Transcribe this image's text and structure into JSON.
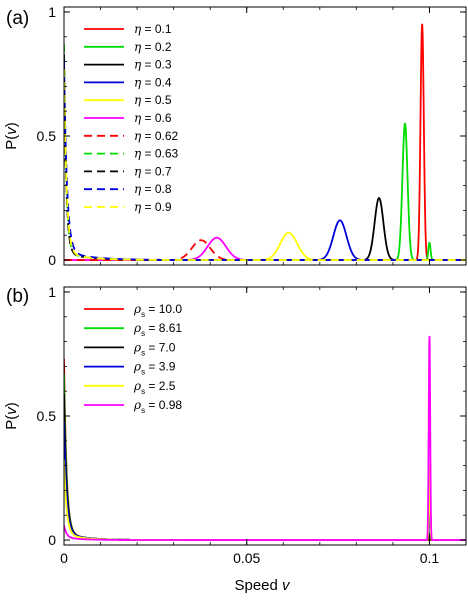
{
  "figure": {
    "x_label": "Speed v",
    "x_ticks": [
      {
        "value": 0,
        "label": "0"
      },
      {
        "value": 0.05,
        "label": "0.05"
      },
      {
        "value": 0.1,
        "label": "0.1"
      }
    ]
  },
  "chart_data": [
    {
      "type": "line",
      "panel_label": "(a)",
      "ylabel": "P(v)",
      "xlim": [
        0,
        0.11
      ],
      "ylim": [
        -0.02,
        1.02
      ],
      "x_ticks": [
        0,
        0.05,
        0.1
      ],
      "y_ticks": [
        {
          "value": 0,
          "label": "0"
        },
        {
          "value": 0.5,
          "label": "0.5"
        },
        {
          "value": 1,
          "label": "1"
        }
      ],
      "legend_position": "top-left",
      "legend_symbol": "η",
      "series": [
        {
          "name": "η = 0.1",
          "legend_value": "0.1",
          "color": "#ff0000",
          "dash": "solid",
          "curves": [
            {
              "kind": "peak",
              "center": 0.098,
              "width": 0.00045,
              "height": 0.95
            }
          ]
        },
        {
          "name": "η = 0.2",
          "legend_value": "0.2",
          "color": "#00dd00",
          "dash": "solid",
          "curves": [
            {
              "kind": "peak",
              "center": 0.0933,
              "width": 0.0007,
              "height": 0.55
            },
            {
              "kind": "peak",
              "center": 0.1,
              "width": 0.0003,
              "height": 0.07
            }
          ]
        },
        {
          "name": "η = 0.3",
          "legend_value": "0.3",
          "color": "#000000",
          "dash": "solid",
          "curves": [
            {
              "kind": "peak",
              "center": 0.0862,
              "width": 0.0012,
              "height": 0.25
            }
          ]
        },
        {
          "name": "η = 0.4",
          "legend_value": "0.4",
          "color": "#0000dd",
          "dash": "solid",
          "curves": [
            {
              "kind": "peak",
              "center": 0.0755,
              "width": 0.0018,
              "height": 0.16
            }
          ]
        },
        {
          "name": "η = 0.5",
          "legend_value": "0.5",
          "color": "#ffff00",
          "dash": "solid",
          "curves": [
            {
              "kind": "peak",
              "center": 0.0615,
              "width": 0.0023,
              "height": 0.11
            }
          ]
        },
        {
          "name": "η = 0.6",
          "legend_value": "0.6",
          "color": "#ff00ff",
          "dash": "solid",
          "curves": [
            {
              "kind": "peak",
              "center": 0.0418,
              "width": 0.0025,
              "height": 0.09
            }
          ]
        },
        {
          "name": "η = 0.62",
          "legend_value": "0.62",
          "color": "#ff0000",
          "dash": "dashed",
          "curves": [
            {
              "kind": "peak",
              "center": 0.0375,
              "width": 0.0025,
              "height": 0.08
            }
          ]
        },
        {
          "name": "η = 0.63",
          "legend_value": "0.63",
          "color": "#00dd00",
          "dash": "dashed",
          "curves": [
            {
              "kind": "spike",
              "height": 0.84,
              "decay": 0.0006,
              "tail": 0.03,
              "tail_decay": 0.006
            }
          ]
        },
        {
          "name": "η = 0.7",
          "legend_value": "0.7",
          "color": "#000000",
          "dash": "dashed",
          "curves": [
            {
              "kind": "spike",
              "height": 0.8,
              "decay": 0.0006,
              "tail": 0.03,
              "tail_decay": 0.006
            }
          ]
        },
        {
          "name": "η = 0.8",
          "legend_value": "0.8",
          "color": "#0000dd",
          "dash": "dashed",
          "curves": [
            {
              "kind": "spike",
              "height": 0.77,
              "decay": 0.0008,
              "tail": 0.035,
              "tail_decay": 0.007
            }
          ]
        },
        {
          "name": "η = 0.9",
          "legend_value": "0.9",
          "color": "#ffff00",
          "dash": "dashed",
          "curves": [
            {
              "kind": "spike",
              "height": 0.74,
              "decay": 0.0007,
              "tail": 0.03,
              "tail_decay": 0.006
            }
          ]
        }
      ]
    },
    {
      "type": "line",
      "panel_label": "(b)",
      "ylabel": "P(v)",
      "xlim": [
        0,
        0.11
      ],
      "ylim": [
        -0.02,
        1.02
      ],
      "x_ticks": [
        0,
        0.05,
        0.1
      ],
      "y_ticks": [
        {
          "value": 0,
          "label": "0"
        },
        {
          "value": 0.5,
          "label": "0.5"
        },
        {
          "value": 1,
          "label": "1"
        }
      ],
      "legend_position": "top-left",
      "legend_symbol": "ρ",
      "legend_subscript": "s",
      "series": [
        {
          "name": "ρs = 10.0",
          "legend_value": "10.0",
          "color": "#ff0000",
          "dash": "solid",
          "curves": [
            {
              "kind": "spike",
              "height": 0.7,
              "decay": 0.0007,
              "tail": 0.03,
              "tail_decay": 0.005
            }
          ]
        },
        {
          "name": "ρs = 8.61",
          "legend_value": "8.61",
          "color": "#00dd00",
          "dash": "solid",
          "curves": [
            {
              "kind": "spike",
              "height": 0.64,
              "decay": 0.0007,
              "tail": 0.03,
              "tail_decay": 0.005
            },
            {
              "kind": "peak",
              "center": 0.1,
              "width": 0.00018,
              "height": 0.03
            }
          ]
        },
        {
          "name": "ρs = 7.0",
          "legend_value": "7.0",
          "color": "#000000",
          "dash": "solid",
          "curves": [
            {
              "kind": "spike",
              "height": 0.56,
              "decay": 0.0007,
              "tail": 0.03,
              "tail_decay": 0.005
            },
            {
              "kind": "peak",
              "center": 0.1,
              "width": 0.00018,
              "height": 0.02
            }
          ]
        },
        {
          "name": "ρs = 3.9",
          "legend_value": "3.9",
          "color": "#0000dd",
          "dash": "solid",
          "curves": [
            {
              "kind": "spike",
              "height": 0.45,
              "decay": 0.0007,
              "tail": 0.03,
              "tail_decay": 0.005
            },
            {
              "kind": "peak",
              "center": 0.1,
              "width": 0.00018,
              "height": 0.16
            }
          ]
        },
        {
          "name": "ρs = 2.5",
          "legend_value": "2.5",
          "color": "#ffff00",
          "dash": "solid",
          "curves": [
            {
              "kind": "spike",
              "height": 0.3,
              "decay": 0.0007,
              "tail": 0.025,
              "tail_decay": 0.005
            },
            {
              "kind": "peak",
              "center": 0.1,
              "width": 0.00018,
              "height": 0.3
            }
          ]
        },
        {
          "name": "ρs = 0.98",
          "legend_value": "0.98",
          "color": "#ff00ff",
          "dash": "solid",
          "curves": [
            {
              "kind": "spike",
              "height": 0.05,
              "decay": 0.0007,
              "tail": 0.01,
              "tail_decay": 0.005
            },
            {
              "kind": "peak",
              "center": 0.1,
              "width": 0.0002,
              "height": 0.82
            }
          ]
        }
      ]
    }
  ]
}
